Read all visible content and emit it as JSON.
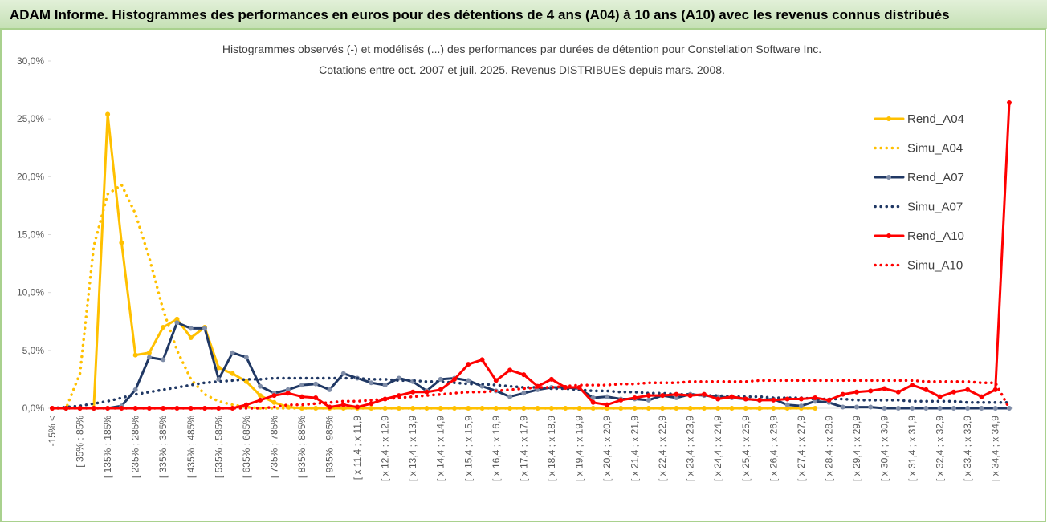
{
  "chart_data": {
    "type": "line",
    "title": "ADAM Informe. Histogrammes des performances en euros pour des détentions de 4 ans (A04) à 10 ans (A10) avec les revenus connus distribués",
    "subtitle": [
      "Histogrammes observés (-) et modélisés (...) des performances par durées de détention pour Constellation Software Inc.",
      "Cotations entre oct. 2007 et juil. 2025. Revenus DISTRIBUES depuis mars. 2008."
    ],
    "categories": [
      "-15% <",
      null,
      "[ 35% ; 85%",
      null,
      "[ 135% ; 185%",
      null,
      "[ 235% ; 285%",
      null,
      "[ 335% ; 385%",
      null,
      "[ 435% ; 485%",
      null,
      "[ 535% ; 585%",
      null,
      "[ 635% ; 685%",
      null,
      "[ 735% ; 785%",
      null,
      "[ 835% ; 885%",
      null,
      "[ 935% ; 985%",
      null,
      "[ x 11,4 ; x 11,9",
      null,
      "[ x 12,4 ; x 12,9",
      null,
      "[ x 13,4 ; x 13,9",
      null,
      "[ x 14,4 ; x 14,9",
      null,
      "[ x 15,4 ; x 15,9",
      null,
      "[ x 16,4 ; x 16,9",
      null,
      "[ x 17,4 ; x 17,9",
      null,
      "[ x 18,4 ; x 18,9",
      null,
      "[ x 19,4 ; x 19,9",
      null,
      "[ x 20,4 ; x 20,9",
      null,
      "[ x 21,4 ; x 21,9",
      null,
      "[ x 22,4 ; x 22,9",
      null,
      "[ x 23,4 ; x 23,9",
      null,
      "[ x 24,4 ; x 24,9",
      null,
      "[ x 25,4 ; x 25,9",
      null,
      "[ x 26,4 ; x 26,9",
      null,
      "[ x 27,4 ; x 27,9",
      null,
      "[ x 28,4 ; x 28,9",
      null,
      "[ x 29,4 ; x 29,9",
      null,
      "[ x 30,4 ; x 30,9",
      null,
      "[ x 31,4 ; x 31,9",
      null,
      "[ x 32,4 ; x 32,9",
      null,
      "[ x 33,4 ; x 33,9",
      null,
      "[ x 34,4 ; x 34,9",
      null
    ],
    "series": [
      {
        "name": "Rend_A04",
        "color": "#FFC000",
        "style": "solid",
        "values": [
          0,
          0,
          0,
          0,
          25.4,
          14.3,
          4.6,
          4.8,
          7.0,
          7.7,
          6.1,
          7.0,
          3.5,
          3.0,
          2.3,
          1.1,
          0.5,
          0.1,
          0,
          0,
          0,
          0,
          0,
          0,
          0,
          0,
          0,
          0,
          0,
          0,
          0,
          0,
          0,
          0,
          0,
          0,
          0,
          0,
          0,
          0,
          0,
          0,
          0,
          0,
          0,
          0,
          0,
          0,
          0,
          0,
          0,
          0,
          0,
          0,
          0,
          0,
          null,
          null,
          null,
          null,
          null,
          null,
          null,
          null,
          null,
          null,
          null,
          null,
          null,
          null
        ]
      },
      {
        "name": "Simu_A04",
        "color": "#FFC000",
        "style": "dotted",
        "values": [
          0,
          0,
          3,
          14,
          18.5,
          19.3,
          16.8,
          13,
          8.5,
          5,
          2.5,
          1.2,
          0.6,
          0.3,
          0.1,
          0,
          0,
          0,
          0,
          0,
          0,
          0,
          0,
          0,
          0,
          0,
          0,
          0,
          0,
          0,
          0,
          0,
          0,
          0,
          0,
          0,
          0,
          0,
          0,
          0,
          0,
          0,
          0,
          0,
          0,
          0,
          0,
          0,
          0,
          0,
          0,
          0,
          0,
          0,
          0,
          0,
          null,
          null,
          null,
          null,
          null,
          null,
          null,
          null,
          null,
          null,
          null,
          null,
          null,
          null
        ]
      },
      {
        "name": "Rend_A07",
        "color": "#203864",
        "style": "solid",
        "values": [
          0,
          0,
          0,
          0,
          0,
          0.2,
          1.6,
          4.4,
          4.2,
          7.4,
          6.9,
          6.9,
          2.5,
          4.8,
          4.4,
          1.9,
          1.3,
          1.6,
          2.0,
          2.1,
          1.6,
          3.0,
          2.6,
          2.2,
          2.0,
          2.6,
          2.3,
          1.5,
          2.5,
          2.6,
          2.4,
          1.9,
          1.5,
          1.0,
          1.3,
          1.6,
          1.8,
          1.8,
          1.7,
          0.9,
          1.0,
          0.8,
          0.8,
          0.7,
          1.1,
          0.9,
          1.2,
          1.1,
          1.0,
          0.9,
          0.8,
          0.7,
          0.8,
          0.3,
          0.2,
          0.6,
          0.5,
          0.1,
          0.1,
          0.1,
          0,
          0,
          0,
          0,
          0,
          0,
          0,
          0,
          0,
          0
        ]
      },
      {
        "name": "Simu_A07",
        "color": "#203864",
        "style": "dotted",
        "values": [
          0,
          0.1,
          0.2,
          0.4,
          0.6,
          0.9,
          1.2,
          1.4,
          1.6,
          1.8,
          2.0,
          2.2,
          2.3,
          2.4,
          2.5,
          2.5,
          2.6,
          2.6,
          2.6,
          2.6,
          2.6,
          2.6,
          2.6,
          2.5,
          2.5,
          2.4,
          2.4,
          2.3,
          2.3,
          2.2,
          2.1,
          2.1,
          2.0,
          1.9,
          1.8,
          1.8,
          1.7,
          1.7,
          1.6,
          1.5,
          1.5,
          1.4,
          1.4,
          1.3,
          1.3,
          1.2,
          1.2,
          1.1,
          1.1,
          1.0,
          1.0,
          1.0,
          0.9,
          0.9,
          0.9,
          0.8,
          0.8,
          0.8,
          0.7,
          0.7,
          0.7,
          0.7,
          0.6,
          0.6,
          0.6,
          0.6,
          0.5,
          0.5,
          0.5,
          0.5
        ]
      },
      {
        "name": "Rend_A10",
        "color": "#FF0000",
        "style": "solid",
        "values": [
          0,
          0,
          0,
          0,
          0,
          0,
          0,
          0,
          0,
          0,
          0,
          0,
          0,
          0,
          0.3,
          0.7,
          1.1,
          1.3,
          1.0,
          0.9,
          0.1,
          0.3,
          0.1,
          0.4,
          0.8,
          1.1,
          1.4,
          1.4,
          1.6,
          2.5,
          3.8,
          4.2,
          2.4,
          3.3,
          2.9,
          1.9,
          2.5,
          1.8,
          1.8,
          0.5,
          0.3,
          0.7,
          0.9,
          1.1,
          1.1,
          1.2,
          1.1,
          1.2,
          0.8,
          1.0,
          0.8,
          0.7,
          0.7,
          0.8,
          0.8,
          0.9,
          0.7,
          1.2,
          1.4,
          1.5,
          1.7,
          1.4,
          2.0,
          1.6,
          1.0,
          1.4,
          1.6,
          1.0,
          1.6,
          26.4
        ]
      },
      {
        "name": "Simu_A10",
        "color": "#FF0000",
        "style": "dotted",
        "values": [
          0,
          0,
          0,
          0,
          0,
          0,
          0,
          0,
          0,
          0,
          0,
          0,
          0,
          0,
          0,
          0,
          0.1,
          0.3,
          0.3,
          0.4,
          0.5,
          0.6,
          0.6,
          0.7,
          0.8,
          0.9,
          1.0,
          1.1,
          1.2,
          1.3,
          1.4,
          1.4,
          1.5,
          1.6,
          1.7,
          1.8,
          1.8,
          1.9,
          2.0,
          2.0,
          2.0,
          2.1,
          2.1,
          2.2,
          2.2,
          2.2,
          2.3,
          2.3,
          2.3,
          2.3,
          2.3,
          2.4,
          2.4,
          2.4,
          2.4,
          2.4,
          2.4,
          2.4,
          2.4,
          2.4,
          2.4,
          2.4,
          2.4,
          2.3,
          2.3,
          2.3,
          2.3,
          2.2,
          2.2,
          0
        ]
      }
    ],
    "ylim": [
      0,
      30
    ],
    "yticks": [
      {
        "value": 0,
        "label": "0,0%"
      },
      {
        "value": 5,
        "label": "5,0%"
      },
      {
        "value": 10,
        "label": "10,0%"
      },
      {
        "value": 15,
        "label": "15,0%"
      },
      {
        "value": 20,
        "label": "20,0%"
      },
      {
        "value": 25,
        "label": "25,0%"
      },
      {
        "value": 30,
        "label": "30,0%"
      }
    ],
    "legend": "right"
  }
}
